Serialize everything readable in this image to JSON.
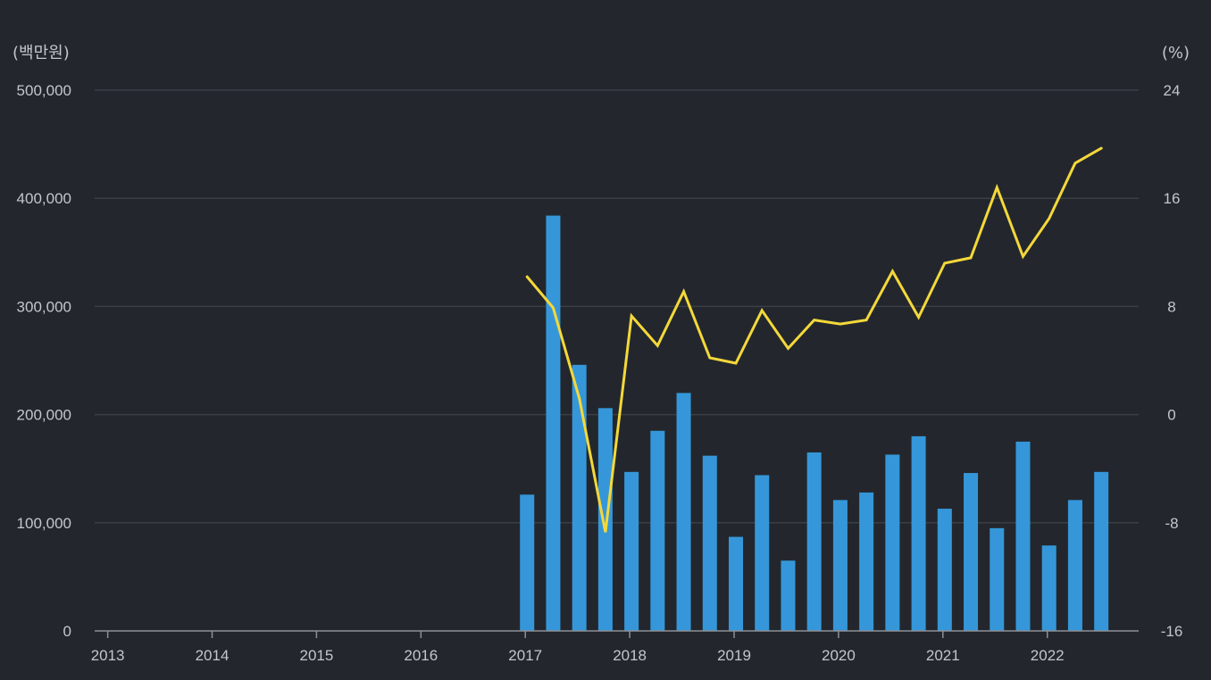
{
  "chart_data": {
    "type": "bar",
    "title": "",
    "colors": {
      "background": "#23272d",
      "grid": "#3a3f46",
      "axis": "#8b9097",
      "bar": "#3597d9",
      "line": "#f4d83a",
      "text": "#c3c7cc"
    },
    "left_axis": {
      "unit_label": "(백만원)",
      "ylim": [
        0,
        500000
      ],
      "ticks": [
        0,
        100000,
        200000,
        300000,
        400000,
        500000
      ],
      "tick_labels": [
        "0",
        "100,000",
        "200,000",
        "300,000",
        "400,000",
        "500,000"
      ]
    },
    "right_axis": {
      "unit_label": "(%)",
      "ylim": [
        -16,
        24
      ],
      "ticks": [
        -16,
        -8,
        0,
        8,
        16,
        24
      ],
      "tick_labels": [
        "-16",
        "-8",
        "0",
        "8",
        "16",
        "24"
      ]
    },
    "x_axis": {
      "xlim": [
        2012.875,
        2022.875
      ],
      "ticks": [
        2013,
        2014,
        2015,
        2016,
        2017,
        2018,
        2019,
        2020,
        2021,
        2022
      ],
      "tick_labels": [
        "2013",
        "2014",
        "2015",
        "2016",
        "2017",
        "2018",
        "2019",
        "2020",
        "2021",
        "2022"
      ]
    },
    "x": [
      2017.0,
      2017.25,
      2017.5,
      2017.75,
      2018.0,
      2018.25,
      2018.5,
      2018.75,
      2019.0,
      2019.25,
      2019.5,
      2019.75,
      2020.0,
      2020.25,
      2020.5,
      2020.75,
      2021.0,
      2021.25,
      2021.5,
      2021.75,
      2022.0,
      2022.25,
      2022.5
    ],
    "series": [
      {
        "name": "bar-series",
        "type": "bar",
        "axis": "left",
        "values": [
          126000,
          384000,
          246000,
          206000,
          147000,
          185000,
          220000,
          162000,
          87000,
          144000,
          65000,
          165000,
          121000,
          128000,
          163000,
          180000,
          113000,
          146000,
          95000,
          175000,
          79000,
          121000,
          147000
        ]
      },
      {
        "name": "line-series",
        "type": "line",
        "axis": "right",
        "values": [
          10.2,
          7.9,
          1.2,
          -8.7,
          7.3,
          5.1,
          9.1,
          4.2,
          3.8,
          7.7,
          4.9,
          7.0,
          6.7,
          7.0,
          10.6,
          7.2,
          11.2,
          11.6,
          16.8,
          11.7,
          14.5,
          18.6,
          19.7
        ]
      }
    ]
  }
}
